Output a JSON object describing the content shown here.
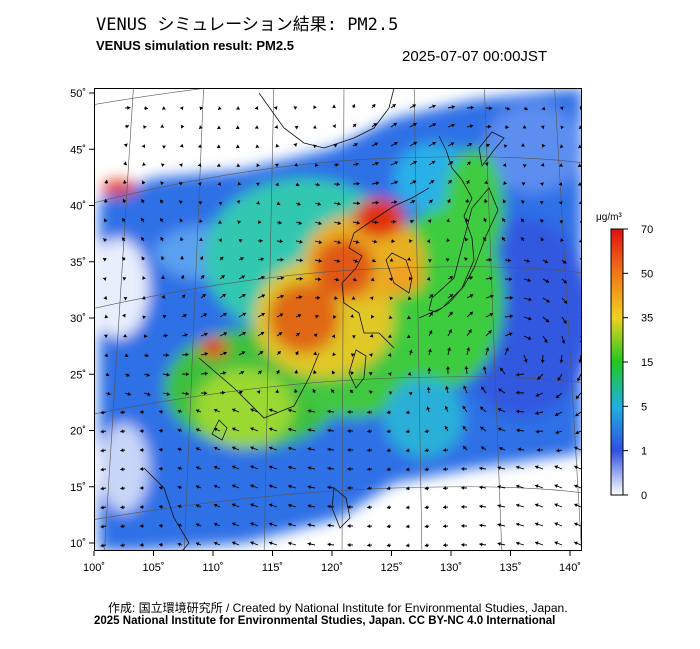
{
  "header": {
    "title_jp": "VENUS シミュレーション結果: PM2.5",
    "title_en": "VENUS simulation result: PM2.5",
    "timestamp": "2025-07-07 00:00JST"
  },
  "map": {
    "x_ticks": [
      "100˚",
      "105˚",
      "110˚",
      "115˚",
      "120˚",
      "125˚",
      "130˚",
      "135˚",
      "140˚"
    ],
    "y_ticks": [
      "50˚",
      "45˚",
      "40˚",
      "35˚",
      "30˚",
      "25˚",
      "20˚",
      "15˚",
      "10˚"
    ],
    "lon_range": [
      100,
      141
    ],
    "lat_range": [
      9,
      51
    ]
  },
  "colorbar": {
    "unit": "μg/m³",
    "levels": [
      "70",
      "50",
      "35",
      "15",
      "5",
      "1",
      "0"
    ],
    "colors": [
      "#e01010",
      "#f07818",
      "#f0d020",
      "#20c820",
      "#20b0e0",
      "#3050e0",
      "#ffffff"
    ]
  },
  "footer": {
    "credit": "作成: 国立環境研究所 / Created by National Institute for Environmental Studies, Japan.",
    "copyright": "2025 National Institute for Environmental Studies, Japan. CC BY-NC 4.0 International"
  }
}
